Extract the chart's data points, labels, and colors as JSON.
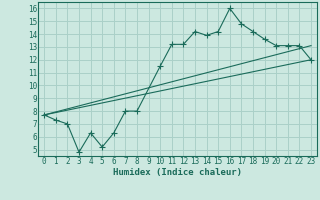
{
  "title": "",
  "xlabel": "Humidex (Indice chaleur)",
  "ylabel": "",
  "background_color": "#cce8e0",
  "grid_color": "#aad0c8",
  "line_color": "#1a6b5a",
  "xlim": [
    -0.5,
    23.5
  ],
  "ylim": [
    4.5,
    16.5
  ],
  "xticks": [
    0,
    1,
    2,
    3,
    4,
    5,
    6,
    7,
    8,
    9,
    10,
    11,
    12,
    13,
    14,
    15,
    16,
    17,
    18,
    19,
    20,
    21,
    22,
    23
  ],
  "yticks": [
    5,
    6,
    7,
    8,
    9,
    10,
    11,
    12,
    13,
    14,
    15,
    16
  ],
  "series": [
    {
      "x": [
        0,
        1,
        2,
        3,
        4,
        5,
        6,
        7,
        8,
        10,
        11,
        12,
        13,
        14,
        15,
        16,
        17,
        18,
        19,
        20,
        21,
        22,
        23
      ],
      "y": [
        7.7,
        7.3,
        7.0,
        4.8,
        6.3,
        5.2,
        6.3,
        8.0,
        8.0,
        11.5,
        13.2,
        13.2,
        14.2,
        13.9,
        14.2,
        16.0,
        14.8,
        14.2,
        13.6,
        13.1,
        13.1,
        13.1,
        12.0
      ],
      "has_markers": true
    },
    {
      "x": [
        0,
        23
      ],
      "y": [
        7.7,
        12.0
      ],
      "has_markers": false
    },
    {
      "x": [
        0,
        23
      ],
      "y": [
        7.7,
        13.1
      ],
      "has_markers": false
    }
  ],
  "xlabel_fontsize": 6.5,
  "xlabel_fontweight": "bold",
  "tick_fontsize": 5.5,
  "tick_color": "#1a6b5a",
  "spine_color": "#1a6b5a"
}
